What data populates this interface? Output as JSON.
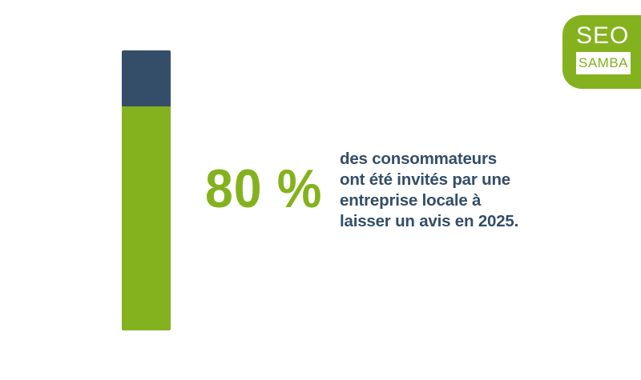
{
  "colors": {
    "accent_green": "#84b21e",
    "navy": "#344e69",
    "background": "#ffffff"
  },
  "stat": {
    "value_text": "80 %",
    "caption_lines": [
      "des consommateurs",
      "ont été invités par une",
      "entreprise locale à",
      "laisser un avis en 2025."
    ]
  },
  "chart_data": {
    "type": "bar",
    "categories": [
      ""
    ],
    "values": [
      80
    ],
    "ylim": [
      0,
      100
    ],
    "grid": false,
    "legend": "none"
  },
  "logo": {
    "top_text": "SEO",
    "bottom_text": "SAMBA"
  }
}
